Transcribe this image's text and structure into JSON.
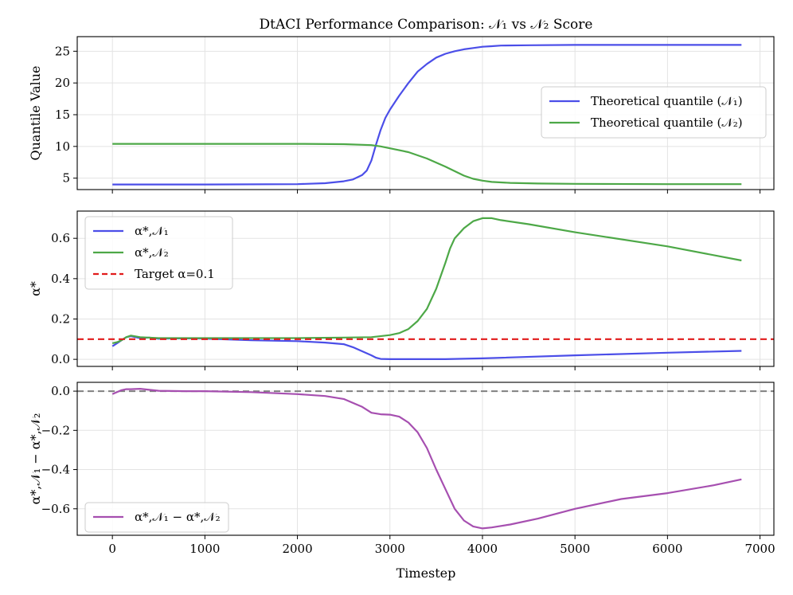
{
  "title": "DtACI Performance Comparison: 𝒩₁ vs 𝒩₂ Score",
  "xlabel": "Timestep",
  "colors": {
    "blue": "#4b4ee8",
    "green": "#4da847",
    "red": "#e11b1b",
    "purple": "#a64fb0",
    "gray": "#808080",
    "grid": "#e3e3e3"
  },
  "x_ticks": [
    "0",
    "1000",
    "2000",
    "3000",
    "4000",
    "5000",
    "6000",
    "7000"
  ],
  "chart_data": [
    {
      "type": "line",
      "ylabel": "Quantile Value",
      "xlim": [
        -380,
        7150
      ],
      "ylim": [
        3.2,
        27.3
      ],
      "yticks": [
        5,
        10,
        15,
        20,
        25
      ],
      "ytick_labels": [
        "5",
        "10",
        "15",
        "20",
        "25"
      ],
      "grid": true,
      "legend_position": "center-right",
      "series": [
        {
          "name": "Theoretical quantile (𝒩₁)",
          "color": "blue",
          "x": [
            0,
            1000,
            2000,
            2300,
            2500,
            2600,
            2700,
            2750,
            2800,
            2850,
            2900,
            2950,
            3000,
            3100,
            3200,
            3300,
            3400,
            3500,
            3600,
            3700,
            3800,
            3900,
            4000,
            4100,
            4200,
            4500,
            5000,
            6000,
            6800
          ],
          "y": [
            4.0,
            4.0,
            4.05,
            4.2,
            4.5,
            4.8,
            5.5,
            6.2,
            7.8,
            10.3,
            12.6,
            14.5,
            15.8,
            18.0,
            20.0,
            21.8,
            23.0,
            24.0,
            24.6,
            25.0,
            25.3,
            25.5,
            25.7,
            25.8,
            25.9,
            25.95,
            26.0,
            26.0,
            26.0
          ]
        },
        {
          "name": "Theoretical quantile (𝒩₂)",
          "color": "green",
          "x": [
            0,
            1000,
            2000,
            2500,
            2800,
            2900,
            3000,
            3200,
            3400,
            3600,
            3700,
            3800,
            3900,
            4000,
            4100,
            4300,
            4600,
            5000,
            6000,
            6800
          ],
          "y": [
            10.4,
            10.4,
            10.4,
            10.35,
            10.2,
            10.0,
            9.7,
            9.1,
            8.1,
            6.8,
            6.1,
            5.4,
            4.9,
            4.6,
            4.4,
            4.25,
            4.15,
            4.1,
            4.05,
            4.05
          ]
        }
      ]
    },
    {
      "type": "line",
      "ylabel": "α*",
      "xlim": [
        -380,
        7150
      ],
      "ylim": [
        -0.035,
        0.735
      ],
      "yticks": [
        0.0,
        0.2,
        0.4,
        0.6
      ],
      "ytick_labels": [
        "0.0",
        "0.2",
        "0.4",
        "0.6"
      ],
      "grid": true,
      "legend_position": "top-left",
      "series": [
        {
          "name": "α*,𝒩₁",
          "color": "blue",
          "x": [
            0,
            50,
            100,
            150,
            200,
            250,
            300,
            400,
            500,
            700,
            1000,
            1500,
            2000,
            2300,
            2500,
            2600,
            2700,
            2800,
            2850,
            2900,
            3000,
            3200,
            3600,
            4000,
            5000,
            6000,
            6800
          ],
          "y": [
            0.065,
            0.08,
            0.095,
            0.11,
            0.115,
            0.11,
            0.105,
            0.108,
            0.102,
            0.104,
            0.103,
            0.095,
            0.09,
            0.083,
            0.075,
            0.06,
            0.04,
            0.02,
            0.008,
            0.002,
            0.001,
            0.001,
            0.001,
            0.005,
            0.02,
            0.033,
            0.042
          ]
        },
        {
          "name": "α*,𝒩₂",
          "color": "green",
          "x": [
            0,
            50,
            100,
            150,
            200,
            300,
            500,
            1000,
            2000,
            2500,
            2800,
            3000,
            3100,
            3200,
            3300,
            3400,
            3500,
            3600,
            3650,
            3700,
            3800,
            3900,
            4000,
            4100,
            4200,
            4500,
            5000,
            6000,
            6800
          ],
          "y": [
            0.08,
            0.085,
            0.095,
            0.11,
            0.118,
            0.11,
            0.105,
            0.105,
            0.105,
            0.108,
            0.11,
            0.12,
            0.13,
            0.15,
            0.19,
            0.25,
            0.35,
            0.48,
            0.55,
            0.6,
            0.65,
            0.685,
            0.7,
            0.7,
            0.69,
            0.67,
            0.63,
            0.56,
            0.49
          ]
        },
        {
          "name": "Target α=0.1",
          "color": "red",
          "dashed": true,
          "hline": 0.1
        }
      ]
    },
    {
      "type": "line",
      "ylabel": "α*,𝒩₁ − α*,𝒩₂",
      "xlim": [
        -380,
        7150
      ],
      "ylim": [
        -0.735,
        0.045
      ],
      "yticks": [
        0.0,
        -0.2,
        -0.4,
        -0.6
      ],
      "ytick_labels": [
        "0.0",
        "−0.2",
        "−0.4",
        "−0.6"
      ],
      "grid": true,
      "legend_position": "bottom-left",
      "reference_line": 0.0,
      "series": [
        {
          "name": "α*,𝒩₁ − α*,𝒩₂",
          "color": "purple",
          "x": [
            0,
            50,
            100,
            150,
            200,
            300,
            500,
            800,
            1000,
            1500,
            2000,
            2300,
            2500,
            2700,
            2800,
            2900,
            3000,
            3100,
            3200,
            3300,
            3400,
            3500,
            3600,
            3700,
            3800,
            3900,
            4000,
            4100,
            4300,
            4600,
            5000,
            5500,
            6000,
            6500,
            6800
          ],
          "y": [
            -0.015,
            -0.005,
            0.005,
            0.01,
            0.01,
            0.012,
            0.002,
            0.0,
            0.0,
            -0.005,
            -0.015,
            -0.025,
            -0.04,
            -0.08,
            -0.11,
            -0.118,
            -0.12,
            -0.13,
            -0.16,
            -0.21,
            -0.29,
            -0.4,
            -0.5,
            -0.6,
            -0.66,
            -0.69,
            -0.7,
            -0.695,
            -0.68,
            -0.65,
            -0.6,
            -0.55,
            -0.52,
            -0.48,
            -0.45
          ]
        }
      ]
    }
  ]
}
